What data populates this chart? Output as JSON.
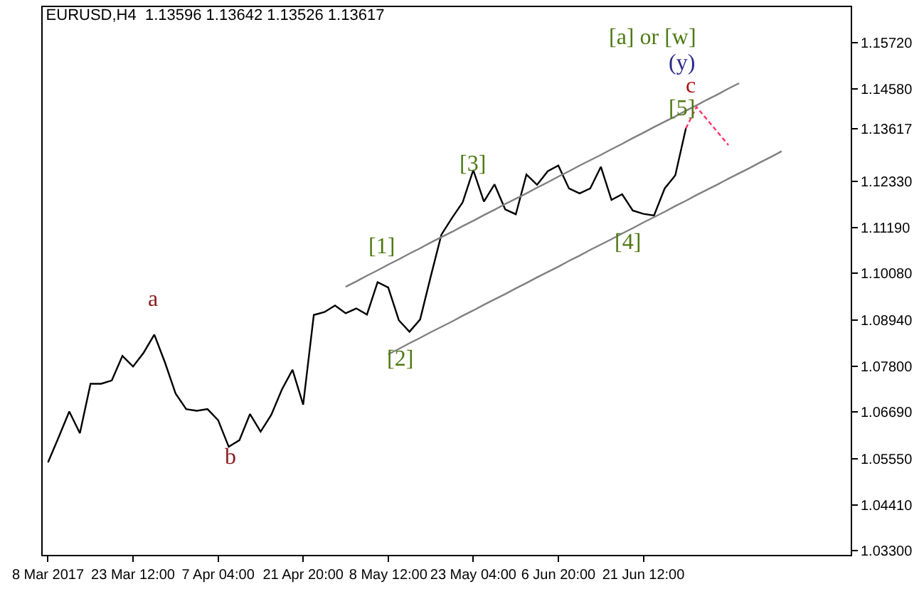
{
  "chart_data": {
    "type": "line",
    "title": "EURUSD,H4  1.13596 1.13642 1.13526 1.13617",
    "categories": [
      "8 Mar 2017",
      null,
      null,
      null,
      null,
      null,
      null,
      null,
      "23 Mar 12:00",
      null,
      null,
      null,
      null,
      null,
      null,
      null,
      "7 Apr 04:00",
      null,
      null,
      null,
      null,
      null,
      null,
      null,
      "21 Apr 20:00",
      null,
      null,
      null,
      null,
      null,
      null,
      null,
      "8 May 12:00",
      null,
      null,
      null,
      null,
      null,
      null,
      null,
      "23 May 04:00",
      null,
      null,
      null,
      null,
      null,
      null,
      null,
      "6 Jun 20:00",
      null,
      null,
      null,
      null,
      null,
      null,
      null,
      "21 Jun 12:00",
      null,
      null,
      null,
      null,
      null,
      null,
      null,
      null,
      null,
      null,
      null,
      null,
      null,
      null,
      null,
      null,
      null,
      null,
      null
    ],
    "ylim": [
      1.032,
      1.1658
    ],
    "yticks": [
      {
        "value": 1.033,
        "label": "1.03300"
      },
      {
        "value": 1.0441,
        "label": "1.04410"
      },
      {
        "value": 1.0555,
        "label": "1.05550"
      },
      {
        "value": 1.0669,
        "label": "1.06690"
      },
      {
        "value": 1.078,
        "label": "1.07800"
      },
      {
        "value": 1.0894,
        "label": "1.08940"
      },
      {
        "value": 1.1008,
        "label": "1.10080"
      },
      {
        "value": 1.1119,
        "label": "1.11190"
      },
      {
        "value": 1.1233,
        "label": "1.12330"
      },
      {
        "value": 1.13617,
        "label": "1.13617"
      },
      {
        "value": 1.1458,
        "label": "1.14580"
      },
      {
        "value": 1.1572,
        "label": "1.15720"
      }
    ],
    "series": [
      {
        "color": "#000000",
        "values": [
          1.0546,
          1.0607,
          1.067,
          1.0617,
          1.0738,
          1.0738,
          1.0746,
          1.0806,
          1.078,
          1.0814,
          1.0858,
          1.079,
          1.0714,
          1.0676,
          1.0672,
          1.0676,
          1.0649,
          1.0584,
          1.06,
          1.0664,
          1.0621,
          1.0662,
          1.0724,
          1.0772,
          1.0687,
          1.0906,
          1.0913,
          1.0929,
          1.091,
          1.0922,
          1.0907,
          1.0986,
          1.0973,
          1.0893,
          1.0865,
          1.0895,
          1.1,
          1.1102,
          1.1143,
          1.1181,
          1.126,
          1.1183,
          1.1225,
          1.1164,
          1.1152,
          1.1249,
          1.1224,
          1.1257,
          1.1271,
          1.1215,
          1.1203,
          1.1215,
          1.1268,
          1.1187,
          1.1201,
          1.1161,
          1.1153,
          1.1149,
          1.1215,
          1.1247,
          1.1362,
          null,
          null,
          null,
          null,
          null,
          null,
          null,
          null,
          null,
          null,
          null,
          null,
          null,
          null,
          null
        ]
      },
      {
        "type": "line",
        "color": "#808080",
        "values": [
          null,
          null,
          null,
          null,
          null,
          null,
          null,
          null,
          null,
          null,
          null,
          null,
          null,
          null,
          null,
          null,
          null,
          null,
          null,
          null,
          null,
          null,
          null,
          null,
          null,
          null,
          null,
          null,
          1.0975,
          1.0988,
          1.1002,
          1.1015,
          1.1029,
          1.1042,
          1.1056,
          1.1069,
          1.1083,
          1.1096,
          1.1109,
          1.1123,
          1.1136,
          1.115,
          1.1163,
          1.1177,
          1.119,
          1.1203,
          1.1217,
          1.123,
          1.1244,
          1.1257,
          1.1271,
          1.1284,
          1.1297,
          1.1311,
          1.1324,
          1.1338,
          1.1351,
          1.1365,
          1.1378,
          1.1391,
          1.1405,
          1.1418,
          1.1432,
          1.1445,
          1.1459,
          1.1472,
          null,
          null,
          null,
          null,
          null,
          null,
          null,
          null,
          null,
          null
        ]
      },
      {
        "type": "line",
        "color": "#808080",
        "values": [
          null,
          null,
          null,
          null,
          null,
          null,
          null,
          null,
          null,
          null,
          null,
          null,
          null,
          null,
          null,
          null,
          null,
          null,
          null,
          null,
          null,
          null,
          null,
          null,
          null,
          null,
          null,
          null,
          null,
          null,
          null,
          null,
          1.081,
          1.0823,
          1.0837,
          1.085,
          1.0864,
          1.0877,
          1.089,
          1.0904,
          1.0917,
          1.0931,
          1.0944,
          1.0957,
          1.0971,
          1.0984,
          1.0998,
          1.1011,
          1.1024,
          1.1038,
          1.1051,
          1.1065,
          1.1078,
          1.1091,
          1.1105,
          1.1118,
          1.1132,
          1.1145,
          1.1158,
          1.1172,
          1.1185,
          1.1199,
          1.1212,
          1.1225,
          1.1239,
          1.1252,
          1.1265,
          1.1279,
          1.1292,
          1.1306,
          null,
          null,
          null,
          null,
          null,
          null
        ]
      },
      {
        "type": "line",
        "color": "#ff3366",
        "line_style": "dashed",
        "values": [
          null,
          null,
          null,
          null,
          null,
          null,
          null,
          null,
          null,
          null,
          null,
          null,
          null,
          null,
          null,
          null,
          null,
          null,
          null,
          null,
          null,
          null,
          null,
          null,
          null,
          null,
          null,
          null,
          null,
          null,
          null,
          null,
          null,
          null,
          null,
          null,
          null,
          null,
          null,
          null,
          null,
          null,
          null,
          null,
          null,
          null,
          null,
          null,
          null,
          null,
          null,
          null,
          null,
          null,
          null,
          null,
          null,
          null,
          null,
          null,
          1.1362,
          1.1414,
          1.1383,
          1.1352,
          1.1321,
          null,
          null,
          null,
          null,
          null,
          null,
          null,
          null,
          null,
          null,
          null
        ]
      }
    ],
    "annotations": [
      "a",
      "b",
      "[1]",
      "[2]",
      "[3]",
      "[4]",
      "[5]",
      "c",
      "(y)",
      "[a] or [w]"
    ]
  }
}
